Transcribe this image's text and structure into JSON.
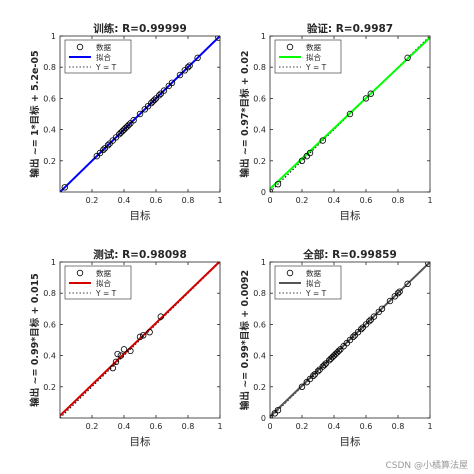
{
  "watermark": "CSDN @小橘算法屋",
  "chart_data": [
    {
      "type": "scatter",
      "title": "训练: R=0.99999",
      "xlabel": "目标",
      "ylabel": "输出 ~= 1*目标 + 5.2e-05",
      "xlim": [
        0,
        1
      ],
      "ylim": [
        0,
        1
      ],
      "xticks": [
        "0.2",
        "0.4",
        "0.6",
        "0.8",
        "1"
      ],
      "yticks": [
        "0.2",
        "0.4",
        "0.6",
        "0.8",
        "1"
      ],
      "fit_color": "#0000ff",
      "fit": {
        "slope": 1,
        "intercept": 5.2e-05
      },
      "legend": [
        "数据",
        "拟合",
        "Y = T"
      ],
      "legend_position": "top-left",
      "points": [
        0.03,
        0.23,
        0.25,
        0.27,
        0.28,
        0.3,
        0.31,
        0.33,
        0.35,
        0.37,
        0.38,
        0.39,
        0.4,
        0.41,
        0.42,
        0.43,
        0.44,
        0.46,
        0.5,
        0.53,
        0.55,
        0.57,
        0.58,
        0.59,
        0.6,
        0.62,
        0.63,
        0.65,
        0.68,
        0.7,
        0.75,
        0.78,
        0.8,
        0.81,
        0.86,
        0.99
      ]
    },
    {
      "type": "scatter",
      "title": "验证: R=0.9987",
      "xlabel": "目标",
      "ylabel": "输出 ~= 0.97*目标 + 0.02",
      "xlim": [
        0,
        1
      ],
      "ylim": [
        0,
        1
      ],
      "xticks": [
        "0",
        "0.2",
        "0.4",
        "0.6",
        "0.8",
        "1"
      ],
      "yticks": [
        "0",
        "0.2",
        "0.4",
        "0.6",
        "0.8",
        "1"
      ],
      "fit_color": "#00ff00",
      "fit": {
        "slope": 0.97,
        "intercept": 0.02
      },
      "legend": [
        "数据",
        "拟合",
        "Y = T"
      ],
      "legend_position": "top-left",
      "points": [
        0.0,
        0.05,
        0.2,
        0.23,
        0.25,
        0.33,
        0.5,
        0.6,
        0.63,
        0.86
      ]
    },
    {
      "type": "scatter",
      "title": "测试: R=0.98098",
      "xlabel": "目标",
      "ylabel": "输出 ~= 0.99*目标 + 0.015",
      "xlim": [
        0,
        1
      ],
      "ylim": [
        0,
        1
      ],
      "xticks": [
        "0.2",
        "0.4",
        "0.6",
        "0.8",
        "1"
      ],
      "yticks": [
        "0.2",
        "0.4",
        "0.6",
        "0.8",
        "1"
      ],
      "fit_color": "#d40000",
      "fit": {
        "slope": 0.99,
        "intercept": 0.015
      },
      "legend": [
        "数据",
        "拟合",
        "Y = T"
      ],
      "legend_position": "top-left",
      "points": [
        [
          0.33,
          0.32
        ],
        [
          0.35,
          0.36
        ],
        [
          0.36,
          0.41
        ],
        [
          0.38,
          0.4
        ],
        [
          0.4,
          0.44
        ],
        [
          0.44,
          0.43
        ],
        [
          0.5,
          0.52
        ],
        [
          0.52,
          0.53
        ],
        [
          0.56,
          0.55
        ],
        [
          0.63,
          0.65
        ]
      ]
    },
    {
      "type": "scatter",
      "title": "全部: R=0.99859",
      "xlabel": "目标",
      "ylabel": "输出 ~= 0.99*目标 + 0.0092",
      "xlim": [
        0,
        1
      ],
      "ylim": [
        0,
        1
      ],
      "xticks": [
        "0",
        "0.2",
        "0.4",
        "0.6",
        "0.8",
        "1"
      ],
      "yticks": [
        "0",
        "0.2",
        "0.4",
        "0.6",
        "0.8",
        "1"
      ],
      "fit_color": "#555555",
      "fit": {
        "slope": 0.99,
        "intercept": 0.0092
      },
      "legend": [
        "数据",
        "拟合",
        "Y = T"
      ],
      "legend_position": "top-left",
      "points": [
        0.0,
        0.03,
        0.05,
        0.2,
        0.23,
        0.25,
        0.27,
        0.28,
        0.3,
        0.31,
        0.33,
        0.34,
        0.35,
        0.37,
        0.38,
        0.39,
        0.4,
        0.41,
        0.42,
        0.43,
        0.44,
        0.46,
        0.48,
        0.5,
        0.52,
        0.53,
        0.55,
        0.57,
        0.58,
        0.6,
        0.62,
        0.63,
        0.65,
        0.68,
        0.7,
        0.75,
        0.78,
        0.8,
        0.81,
        0.86,
        0.99
      ]
    }
  ]
}
